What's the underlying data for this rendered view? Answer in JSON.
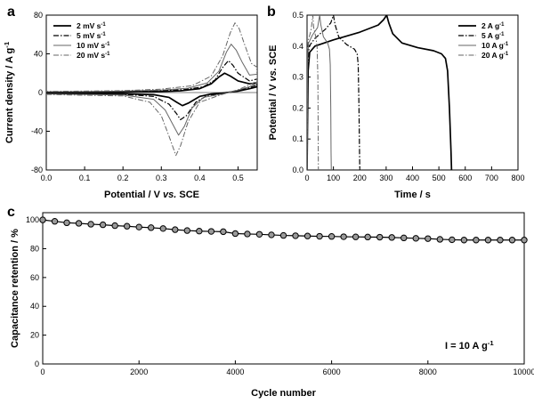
{
  "chart_data": [
    {
      "panel_letter": "a",
      "type": "line",
      "xlabel": "Potential / V vs. SCE",
      "ylabel": "Current density / A g⁻¹",
      "xlim": [
        0.0,
        0.55
      ],
      "ylim": [
        -80,
        80
      ],
      "xticks": [
        0.0,
        0.1,
        0.2,
        0.3,
        0.4,
        0.5
      ],
      "yticks": [
        -80,
        -40,
        0,
        40,
        80
      ],
      "legend_position": "top-left",
      "series": [
        {
          "name": "2 mV s⁻¹",
          "style": "solid",
          "width": 1.7,
          "color": "#000000",
          "points": [
            [
              0.0,
              -1.0
            ],
            [
              0.2,
              -1.3
            ],
            [
              0.28,
              -2.2
            ],
            [
              0.32,
              -5
            ],
            [
              0.34,
              -10
            ],
            [
              0.355,
              -13.5
            ],
            [
              0.37,
              -11
            ],
            [
              0.4,
              -4
            ],
            [
              0.43,
              -1.5
            ],
            [
              0.46,
              -0.5
            ],
            [
              0.5,
              1.5
            ],
            [
              0.53,
              4
            ],
            [
              0.55,
              6
            ],
            [
              0.55,
              10
            ],
            [
              0.53,
              9
            ],
            [
              0.5,
              12
            ],
            [
              0.48,
              17
            ],
            [
              0.465,
              20
            ],
            [
              0.45,
              16
            ],
            [
              0.43,
              9
            ],
            [
              0.4,
              4
            ],
            [
              0.35,
              1.8
            ],
            [
              0.3,
              1
            ],
            [
              0.2,
              0.6
            ],
            [
              0.1,
              0.4
            ],
            [
              0.0,
              0.3
            ]
          ]
        },
        {
          "name": "5 mV s⁻¹",
          "style": "dashdot",
          "width": 1.2,
          "color": "#000000",
          "points": [
            [
              0.0,
              -1.2
            ],
            [
              0.2,
              -1.8
            ],
            [
              0.28,
              -4
            ],
            [
              0.32,
              -12
            ],
            [
              0.34,
              -22
            ],
            [
              0.35,
              -28
            ],
            [
              0.365,
              -24
            ],
            [
              0.39,
              -10
            ],
            [
              0.42,
              -3
            ],
            [
              0.46,
              -1
            ],
            [
              0.5,
              2
            ],
            [
              0.53,
              5
            ],
            [
              0.55,
              8
            ],
            [
              0.55,
              14
            ],
            [
              0.53,
              12
            ],
            [
              0.5,
              20
            ],
            [
              0.487,
              28
            ],
            [
              0.475,
              33
            ],
            [
              0.46,
              26
            ],
            [
              0.44,
              13
            ],
            [
              0.41,
              6
            ],
            [
              0.36,
              3
            ],
            [
              0.3,
              1.8
            ],
            [
              0.2,
              1
            ],
            [
              0.1,
              0.7
            ],
            [
              0.0,
              0.5
            ]
          ]
        },
        {
          "name": "10 mV s⁻¹",
          "style": "solid",
          "width": 1.0,
          "color": "#666666",
          "points": [
            [
              0.0,
              -1.5
            ],
            [
              0.2,
              -2.5
            ],
            [
              0.28,
              -7
            ],
            [
              0.31,
              -18
            ],
            [
              0.33,
              -33
            ],
            [
              0.345,
              -44
            ],
            [
              0.36,
              -35
            ],
            [
              0.38,
              -16
            ],
            [
              0.41,
              -5
            ],
            [
              0.46,
              -1.5
            ],
            [
              0.5,
              2.5
            ],
            [
              0.53,
              6
            ],
            [
              0.55,
              10
            ],
            [
              0.55,
              19
            ],
            [
              0.53,
              18
            ],
            [
              0.51,
              32
            ],
            [
              0.495,
              44
            ],
            [
              0.482,
              50
            ],
            [
              0.47,
              42
            ],
            [
              0.45,
              22
            ],
            [
              0.42,
              10
            ],
            [
              0.37,
              4.5
            ],
            [
              0.3,
              2.5
            ],
            [
              0.2,
              1.5
            ],
            [
              0.1,
              1
            ],
            [
              0.0,
              0.8
            ]
          ]
        },
        {
          "name": "20 mV s⁻¹",
          "style": "dashdot",
          "width": 1.0,
          "color": "#666666",
          "points": [
            [
              0.0,
              -2
            ],
            [
              0.2,
              -3.5
            ],
            [
              0.27,
              -10
            ],
            [
              0.3,
              -24
            ],
            [
              0.32,
              -45
            ],
            [
              0.338,
              -65
            ],
            [
              0.35,
              -55
            ],
            [
              0.37,
              -30
            ],
            [
              0.4,
              -10
            ],
            [
              0.45,
              -3
            ],
            [
              0.5,
              3
            ],
            [
              0.53,
              8
            ],
            [
              0.55,
              12
            ],
            [
              0.55,
              26
            ],
            [
              0.535,
              30
            ],
            [
              0.515,
              52
            ],
            [
              0.503,
              66
            ],
            [
              0.492,
              72
            ],
            [
              0.48,
              62
            ],
            [
              0.46,
              38
            ],
            [
              0.43,
              17
            ],
            [
              0.38,
              7
            ],
            [
              0.3,
              3.5
            ],
            [
              0.2,
              2
            ],
            [
              0.1,
              1.5
            ],
            [
              0.0,
              1.2
            ]
          ]
        }
      ]
    },
    {
      "panel_letter": "b",
      "type": "line",
      "xlabel": "Time / s",
      "ylabel": "Potential / V vs. SCE",
      "xlim": [
        0,
        800
      ],
      "ylim": [
        0.0,
        0.5
      ],
      "xticks": [
        0,
        100,
        200,
        300,
        400,
        500,
        600,
        700,
        800
      ],
      "yticks": [
        0.0,
        0.1,
        0.2,
        0.3,
        0.4,
        0.5
      ],
      "legend_position": "top-right",
      "series": [
        {
          "name": "2 A g⁻¹",
          "style": "solid",
          "width": 1.7,
          "color": "#000000",
          "points": [
            [
              0,
              0
            ],
            [
              4,
              0.32
            ],
            [
              10,
              0.38
            ],
            [
              30,
              0.4
            ],
            [
              100,
              0.42
            ],
            [
              200,
              0.445
            ],
            [
              270,
              0.468
            ],
            [
              290,
              0.485
            ],
            [
              302,
              0.5
            ],
            [
              310,
              0.475
            ],
            [
              325,
              0.44
            ],
            [
              360,
              0.41
            ],
            [
              420,
              0.395
            ],
            [
              480,
              0.385
            ],
            [
              510,
              0.375
            ],
            [
              525,
              0.36
            ],
            [
              533,
              0.32
            ],
            [
              540,
              0.2
            ],
            [
              546,
              0.06
            ],
            [
              548,
              0
            ]
          ]
        },
        {
          "name": "5 A g⁻¹",
          "style": "dashdot",
          "width": 1.2,
          "color": "#000000",
          "points": [
            [
              0,
              0
            ],
            [
              3,
              0.35
            ],
            [
              8,
              0.4
            ],
            [
              30,
              0.425
            ],
            [
              70,
              0.455
            ],
            [
              90,
              0.475
            ],
            [
              100,
              0.5
            ],
            [
              106,
              0.47
            ],
            [
              120,
              0.43
            ],
            [
              150,
              0.405
            ],
            [
              180,
              0.39
            ],
            [
              190,
              0.375
            ],
            [
              194,
              0.34
            ],
            [
              197,
              0.2
            ],
            [
              199,
              0.06
            ],
            [
              200,
              0
            ]
          ]
        },
        {
          "name": "10 A g⁻¹",
          "style": "solid",
          "width": 1.0,
          "color": "#666666",
          "points": [
            [
              0,
              0
            ],
            [
              2,
              0.36
            ],
            [
              6,
              0.41
            ],
            [
              20,
              0.435
            ],
            [
              40,
              0.46
            ],
            [
              48,
              0.5
            ],
            [
              52,
              0.47
            ],
            [
              62,
              0.43
            ],
            [
              78,
              0.41
            ],
            [
              85,
              0.39
            ],
            [
              88,
              0.34
            ],
            [
              90,
              0.2
            ],
            [
              91,
              0.06
            ],
            [
              92,
              0
            ]
          ]
        },
        {
          "name": "20 A g⁻¹",
          "style": "dashdot",
          "width": 1.0,
          "color": "#666666",
          "points": [
            [
              0,
              0
            ],
            [
              2,
              0.38
            ],
            [
              5,
              0.42
            ],
            [
              15,
              0.45
            ],
            [
              22,
              0.5
            ],
            [
              25,
              0.46
            ],
            [
              33,
              0.43
            ],
            [
              38,
              0.4
            ],
            [
              41,
              0.3
            ],
            [
              42,
              0.15
            ],
            [
              43,
              0
            ]
          ]
        }
      ]
    },
    {
      "panel_letter": "c",
      "type": "line",
      "xlabel": "Cycle number",
      "ylabel": "Capacitance retention / %",
      "xlim": [
        0,
        10000
      ],
      "ylim": [
        0,
        105
      ],
      "xticks": [
        0,
        2000,
        4000,
        6000,
        8000,
        10000
      ],
      "yticks": [
        0,
        20,
        40,
        60,
        80,
        100
      ],
      "annotation": "I = 10 A g⁻¹",
      "series": [
        {
          "name": "",
          "style": "solid",
          "width": 1.2,
          "color": "#000000",
          "marker": "circle",
          "x": [
            0,
            250,
            500,
            750,
            1000,
            1250,
            1500,
            1750,
            2000,
            2250,
            2500,
            2750,
            3000,
            3250,
            3500,
            3750,
            4000,
            4250,
            4500,
            4750,
            5000,
            5250,
            5500,
            5750,
            6000,
            6250,
            6500,
            6750,
            7000,
            7250,
            7500,
            7750,
            8000,
            8250,
            8500,
            8750,
            9000,
            9250,
            9500,
            9750,
            10000
          ],
          "y": [
            100,
            99,
            98,
            97.6,
            97,
            96.6,
            96,
            95.6,
            95,
            94.6,
            94,
            93.2,
            92.6,
            92.2,
            92,
            91.8,
            90.5,
            90.2,
            90,
            89.6,
            89.2,
            89,
            88.8,
            88.6,
            88.5,
            88.3,
            88.2,
            88.1,
            88,
            87.8,
            87.5,
            87.2,
            87,
            86.5,
            86.2,
            86,
            86,
            86,
            86,
            86,
            86
          ]
        }
      ]
    }
  ]
}
